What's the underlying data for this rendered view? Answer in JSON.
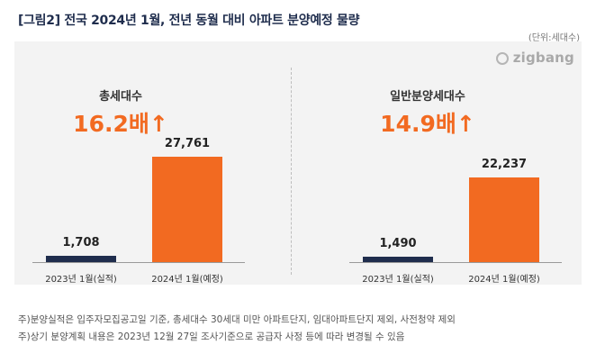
{
  "title": "[그림2] 전국 2024년 1월, 전년 동월 대비 아파트 분양예정 물량",
  "unit": "(단위:세대수)",
  "logo": "zigbang",
  "colors": {
    "prev": "#1f2d4d",
    "curr": "#f26a21"
  },
  "notes": [
    "주)분양실적은 입주자모집공고일 기준, 총세대수 30세대 미만 아파트단지, 임대아파트단지 제외, 사전청약 제외",
    "주)상기 분양계획 내용은 2023년 12월 27일 조사기준으로 공급자 사정 등에 따라 변경될 수 있음"
  ],
  "chart_data": [
    {
      "type": "bar",
      "title": "총세대수",
      "annotation": "16.2배↑",
      "categories": [
        "2023년 1월(실적)",
        "2024년 1월(예정)"
      ],
      "values": [
        1708,
        27761
      ],
      "value_labels": [
        "1,708",
        "27,761"
      ],
      "grid": false
    },
    {
      "type": "bar",
      "title": "일반분양세대수",
      "annotation": "14.9배↑",
      "categories": [
        "2023년 1월(실적)",
        "2024년 1월(예정)"
      ],
      "values": [
        1490,
        22237
      ],
      "value_labels": [
        "1,490",
        "22,237"
      ],
      "grid": false
    }
  ]
}
